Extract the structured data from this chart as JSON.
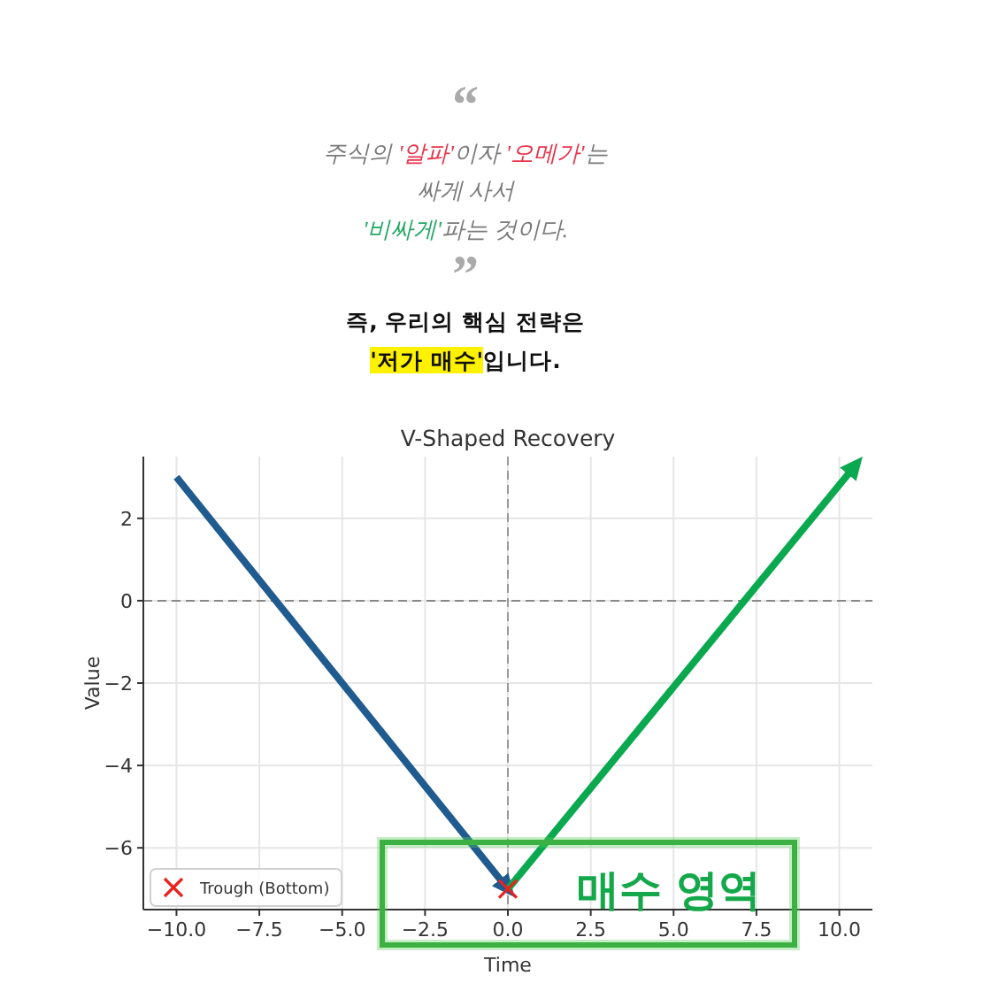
{
  "chart_data": {
    "type": "line",
    "title": "V-Shaped Recovery",
    "xlabel": "Time",
    "ylabel": "Value",
    "annotations": [
      "“",
      "주식의 '알파'이자 '오메가'는",
      "싸게 사서",
      "'비싸게'파는 것이다.",
      "”",
      "즉, 우리의 핵심 전략은",
      "'저가 매수'입니다.",
      "매수 영역"
    ],
    "series": [
      {
        "x": [
          -10,
          0
        ],
        "values": [
          3,
          -7
        ],
        "color": "#1f5b8e"
      },
      {
        "x": [
          0,
          10.5
        ],
        "values": [
          -7,
          3.3
        ],
        "color": "#0aa84f"
      },
      {
        "type": "scatter",
        "name": "Trough (Bottom)",
        "x": [
          0
        ],
        "values": [
          -7
        ],
        "color": "#e8221f",
        "marker": "cross"
      }
    ],
    "xlim": [
      -11,
      11
    ],
    "ylim": [
      -7.5,
      3.5
    ],
    "xticks": [
      {
        "value": -10,
        "label": "−10.0"
      },
      {
        "value": -7.5,
        "label": "−7.5"
      },
      {
        "value": -5,
        "label": "−5.0"
      },
      {
        "value": -2.5,
        "label": "−2.5"
      },
      {
        "value": 0,
        "label": "0.0"
      },
      {
        "value": 2.5,
        "label": "2.5"
      },
      {
        "value": 5,
        "label": "5.0"
      },
      {
        "value": 7.5,
        "label": "7.5"
      },
      {
        "value": 10,
        "label": "10.0"
      }
    ],
    "yticks": [
      {
        "value": -6,
        "label": "−6"
      },
      {
        "value": -4,
        "label": "−4"
      },
      {
        "value": -2,
        "label": "−2"
      },
      0,
      2
    ],
    "grid": true,
    "legend": "bottom left",
    "ref_lines": [
      {
        "axis": "y",
        "value": 0,
        "color": "#888888",
        "line_style": "dashed"
      },
      {
        "axis": "x",
        "value": 0,
        "color": "#999999",
        "line_style": "dashed"
      }
    ]
  }
}
